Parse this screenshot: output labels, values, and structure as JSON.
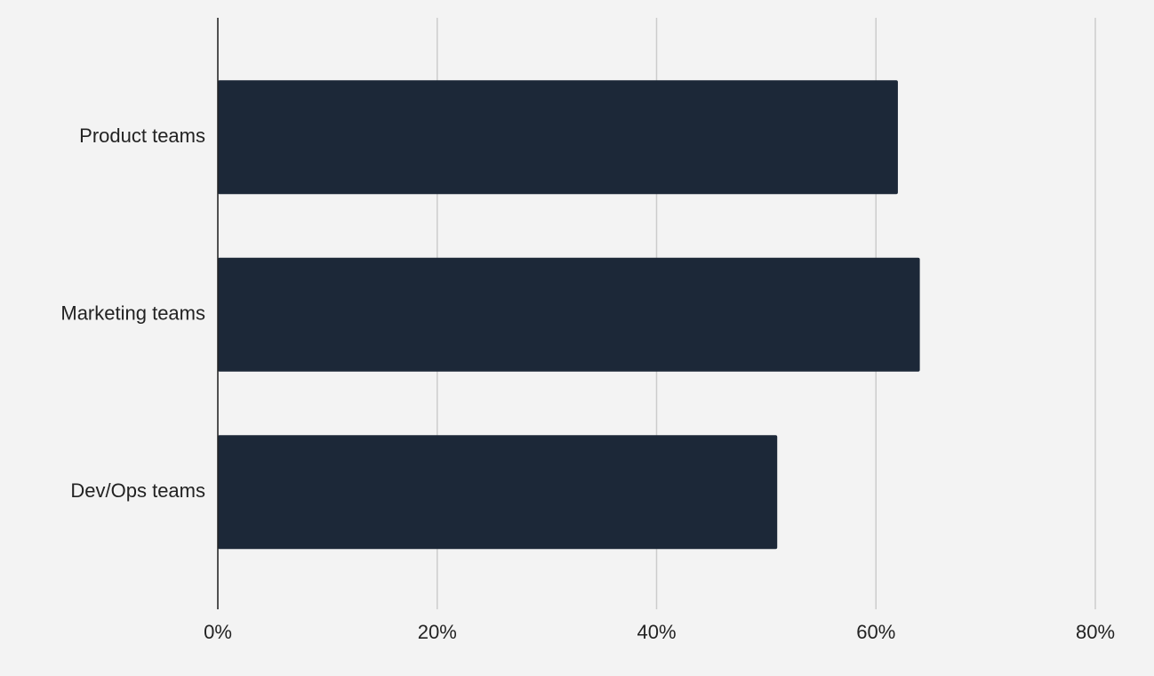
{
  "chart_data": {
    "type": "bar",
    "orientation": "horizontal",
    "categories": [
      "Product teams",
      "Marketing teams",
      "Dev/Ops teams"
    ],
    "values": [
      62,
      64,
      51
    ],
    "color": "#1c2838",
    "xlim": [
      0,
      80
    ],
    "xticks": [
      {
        "value": 0,
        "label": "0%"
      },
      {
        "value": 20,
        "label": "20%"
      },
      {
        "value": 40,
        "label": "40%"
      },
      {
        "value": 60,
        "label": "60%"
      },
      {
        "value": 80,
        "label": "80%"
      }
    ],
    "grid": true
  }
}
